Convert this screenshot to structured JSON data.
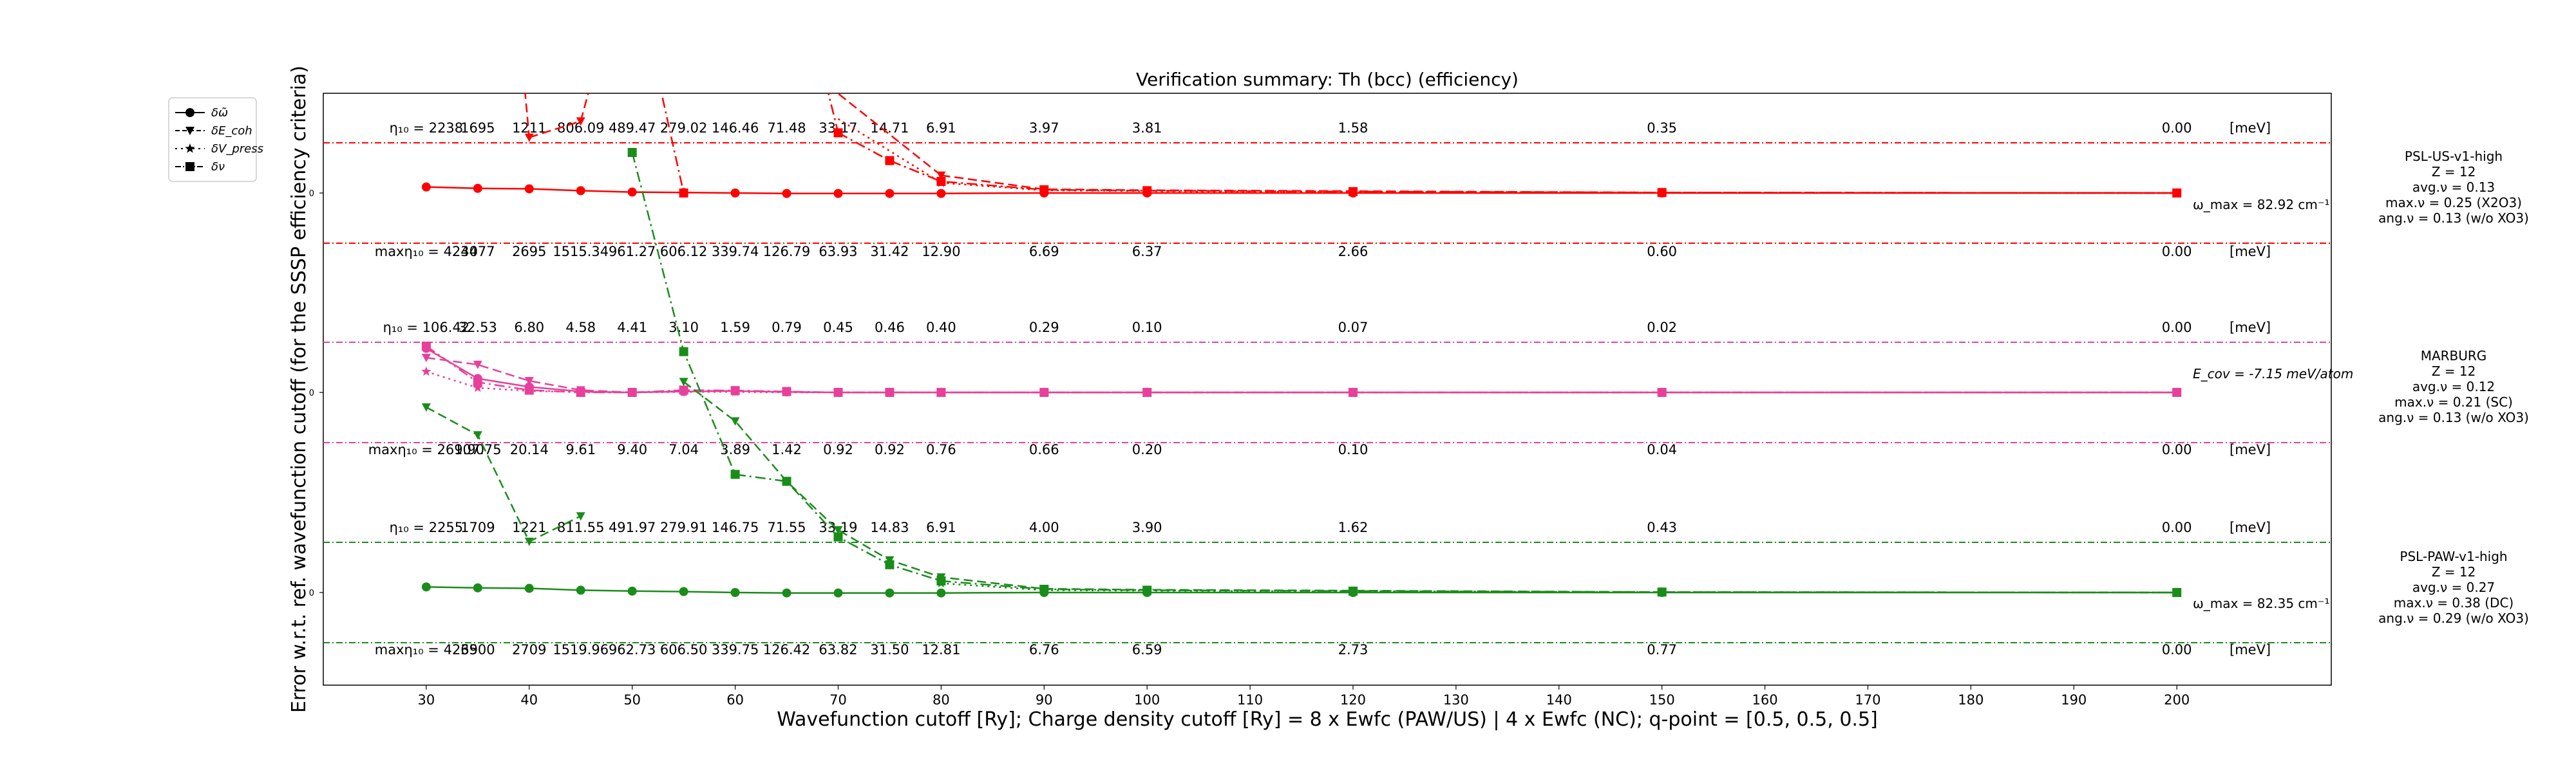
{
  "chart_data": {
    "type": "line",
    "title": "Verification summary: Th (bcc) (efficiency)",
    "xlabel": "Wavefunction cutoff [Ry]; Charge density cutoff [Ry] = 8 x Ewfc (PAW/US) | 4 x Ewfc (NC); q-point = [0.5, 0.5, 0.5]",
    "ylabel": "Error w.r.t. ref. wavefunction cutoff (for the SSSP efficiency criteria)",
    "xlim": [
      20,
      215
    ],
    "xticks": [
      30,
      40,
      50,
      60,
      70,
      80,
      90,
      100,
      110,
      120,
      130,
      140,
      150,
      160,
      170,
      180,
      190,
      200
    ],
    "x": [
      30,
      35,
      40,
      45,
      50,
      55,
      60,
      65,
      70,
      75,
      80,
      90,
      100,
      120,
      150,
      200
    ],
    "unit_label": "[meV]",
    "ytick_label": "0",
    "legend": {
      "position": "top-left, outside the axes",
      "entries": [
        {
          "label": "δω̃",
          "style": "solid line, circle marker"
        },
        {
          "label": "δE_coh",
          "style": "dashed line, triangle-down marker"
        },
        {
          "label": "δV_press",
          "style": "dotted line, star marker"
        },
        {
          "label": "δν",
          "style": "dash-dot line, square marker"
        }
      ]
    },
    "groups": [
      {
        "color": "#ff0000",
        "name_lines": [
          "PSL-US-v1-high",
          "Z = 12",
          "avg.ν = 0.13",
          "max.ν = 0.25 (X2O3)",
          "ang.ν = 0.13 (w/o XO3)"
        ],
        "side_note": "ω_max = 82.92 cm⁻¹",
        "eta_prefix": "η₁₀ = ",
        "eta_values": [
          "2238",
          "1695",
          "1211",
          "806.09",
          "489.47",
          "279.02",
          "146.46",
          "71.48",
          "33.17",
          "14.71",
          "6.91",
          "3.97",
          "3.81",
          "1.58",
          "0.35",
          "0.00"
        ],
        "max_prefix": "maxη₁₀ = ",
        "max_values": [
          "4240",
          "3477",
          "2695",
          "1515.34",
          "961.27",
          "606.12",
          "339.74",
          "126.79",
          "63.93",
          "31.42",
          "12.90",
          "6.69",
          "6.37",
          "2.66",
          "0.60",
          "0.00"
        ],
        "series": {
          "omega": [
            0.13,
            0.1,
            0.09,
            0.05,
            0.02,
            0.01,
            0.0,
            -0.01,
            -0.01,
            -0.01,
            -0.01,
            0.0,
            0.0,
            0.0,
            0.0,
            0.0
          ],
          "ecoh": [
            null,
            null,
            null,
            null,
            null,
            null,
            null,
            null,
            null,
            null,
            0.38,
            0.08,
            0.06,
            0.04,
            0.01,
            0.0
          ],
          "ecoh_rising": {
            "x": [
              40,
              45
            ],
            "y": [
              1.2,
              1.55
            ]
          },
          "vpress": [
            null,
            null,
            null,
            null,
            null,
            null,
            null,
            null,
            null,
            null,
            0.22,
            0.06,
            0.04,
            0.02,
            0.01,
            0.0
          ],
          "nu": [
            null,
            null,
            null,
            null,
            null,
            0.0,
            null,
            null,
            1.3,
            0.7,
            0.25,
            0.07,
            0.05,
            0.03,
            0.01,
            0.0
          ]
        }
      },
      {
        "color": "#e8409a",
        "name_lines": [
          "MARBURG",
          "Z = 12",
          "avg.ν = 0.12",
          "max.ν = 0.21 (SC)",
          "ang.ν = 0.13 (w/o XO3)"
        ],
        "side_note": "E_cov = -7.15 meV/atom",
        "eta_prefix": "η₁₀ = ",
        "eta_values": [
          "106.42",
          "32.53",
          "6.80",
          "4.58",
          "4.41",
          "3.10",
          "1.59",
          "0.79",
          "0.45",
          "0.46",
          "0.40",
          "0.29",
          "0.10",
          "0.07",
          "0.02",
          "0.00"
        ],
        "max_prefix": "maxη₁₀ = ",
        "max_values": [
          "269.90",
          "107.75",
          "20.14",
          "9.61",
          "9.40",
          "7.04",
          "3.89",
          "1.42",
          "0.92",
          "0.92",
          "0.76",
          "0.66",
          "0.20",
          "0.10",
          "0.04",
          "0.00"
        ],
        "series": {
          "omega": [
            0.95,
            0.3,
            0.12,
            0.02,
            0.0,
            0.02,
            0.03,
            0.01,
            0.0,
            0.0,
            0.0,
            0.0,
            0.0,
            0.0,
            0.0,
            0.0
          ],
          "ecoh": [
            0.75,
            0.6,
            0.25,
            0.05,
            0.0,
            0.03,
            0.03,
            0.01,
            0.0,
            0.0,
            0.0,
            0.0,
            0.0,
            0.0,
            0.0,
            0.0
          ],
          "vpress": [
            0.45,
            0.1,
            0.03,
            0.01,
            0.0,
            0.01,
            0.01,
            0.0,
            0.0,
            0.0,
            0.0,
            0.0,
            0.0,
            0.0,
            0.0,
            0.0
          ],
          "nu": [
            1.0,
            0.22,
            0.05,
            0.0,
            0.0,
            0.05,
            0.04,
            0.02,
            0.0,
            0.0,
            0.0,
            0.0,
            0.0,
            0.0,
            0.0,
            0.0
          ]
        }
      },
      {
        "color": "#1a8c1a",
        "name_lines": [
          "PSL-PAW-v1-high",
          "Z = 12",
          "avg.ν = 0.27",
          "max.ν = 0.38 (DC)",
          "ang.ν = 0.29 (w/o XO3)"
        ],
        "side_note": "ω_max = 82.35 cm⁻¹",
        "eta_prefix": "η₁₀ = ",
        "eta_values": [
          "2255",
          "1709",
          "1221",
          "811.55",
          "491.97",
          "279.91",
          "146.75",
          "71.55",
          "33.19",
          "14.83",
          "6.91",
          "4.00",
          "3.90",
          "1.62",
          "0.43",
          "0.00"
        ],
        "max_prefix": "maxη₁₀ = ",
        "max_values": [
          "4269",
          "3500",
          "2709",
          "1519.96",
          "962.73",
          "606.50",
          "339.75",
          "126.42",
          "63.82",
          "31.50",
          "12.81",
          "6.76",
          "6.59",
          "2.73",
          "0.77",
          "0.00"
        ],
        "series": {
          "omega": [
            0.12,
            0.1,
            0.09,
            0.05,
            0.03,
            0.02,
            0.0,
            -0.01,
            -0.01,
            -0.01,
            -0.01,
            0.0,
            0.0,
            0.0,
            0.0,
            0.0
          ],
          "ecoh": [
            4.0,
            3.4,
            1.1,
            1.65,
            null,
            4.55,
            3.7,
            2.4,
            1.35,
            0.7,
            0.33,
            0.08,
            0.06,
            0.04,
            0.01,
            0.0
          ],
          "vpress": [
            null,
            null,
            null,
            null,
            null,
            null,
            null,
            null,
            null,
            null,
            0.2,
            0.05,
            0.04,
            0.02,
            0.01,
            0.0
          ],
          "nu": [
            null,
            null,
            null,
            null,
            9.5,
            5.2,
            2.55,
            2.4,
            1.2,
            0.6,
            0.25,
            0.07,
            0.05,
            0.03,
            0.01,
            0.0
          ]
        }
      }
    ]
  }
}
